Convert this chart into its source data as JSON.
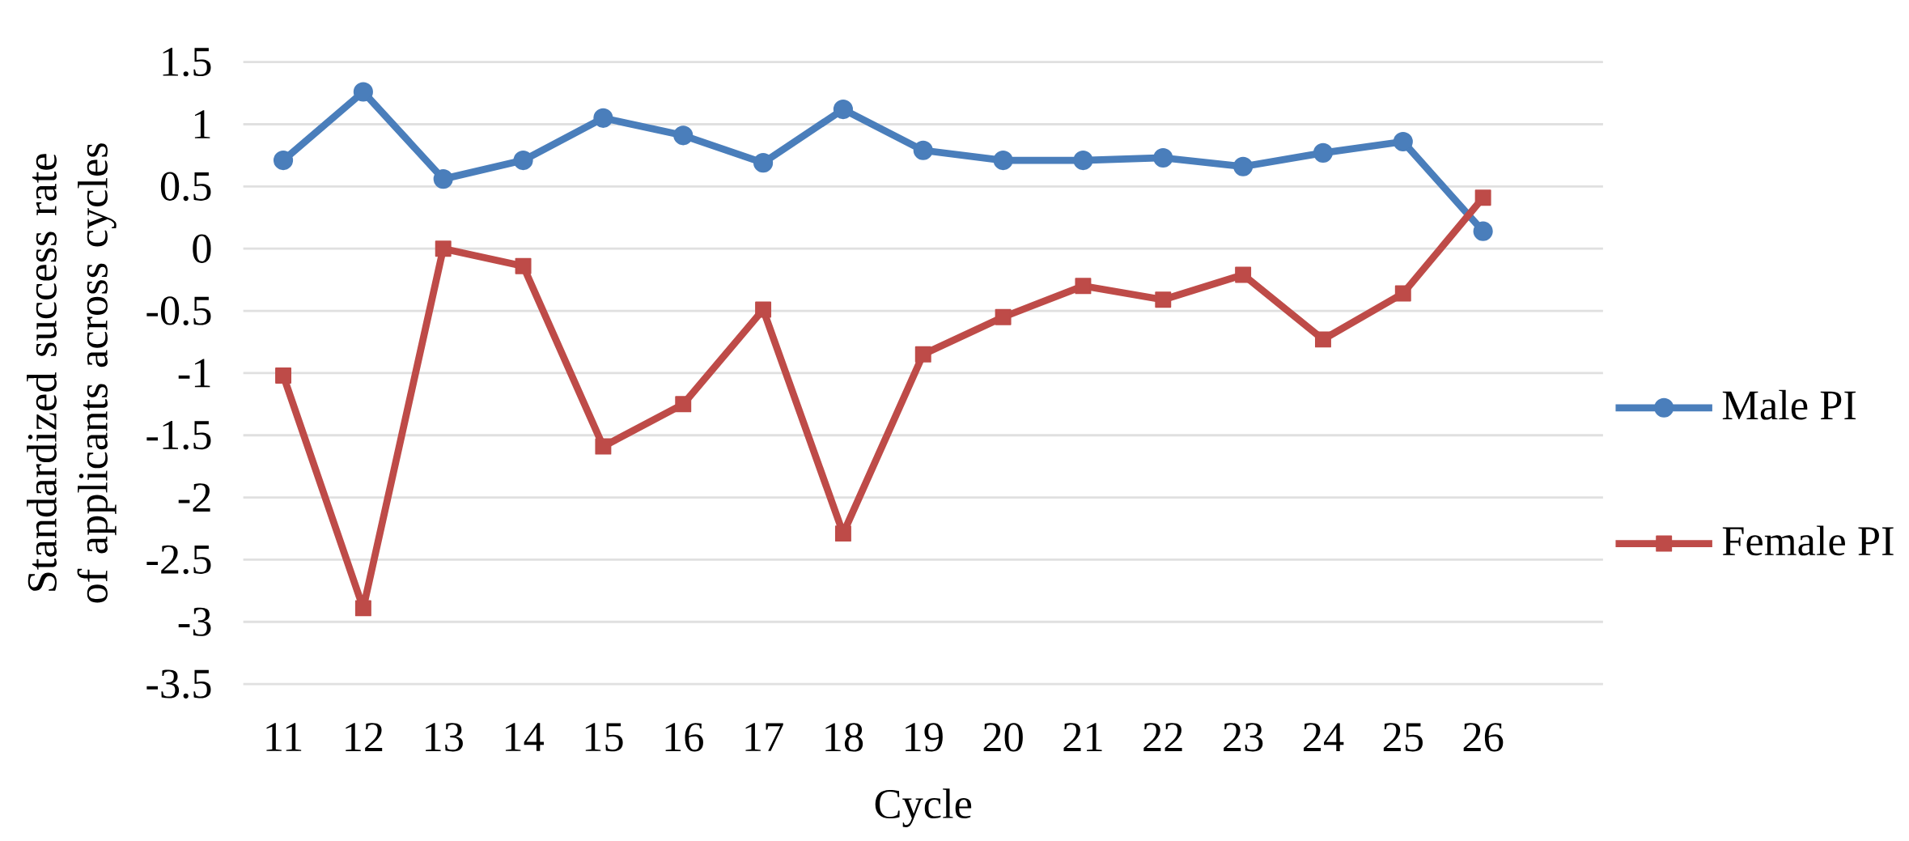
{
  "chart_data": {
    "type": "line",
    "xlabel": "Cycle",
    "ylabel": "Standardized success rate of applicants across cycles",
    "categories": [
      "11",
      "12",
      "13",
      "14",
      "15",
      "16",
      "17",
      "18",
      "19",
      "20",
      "21",
      "22",
      "23",
      "24",
      "25",
      "26"
    ],
    "series": [
      {
        "name": "Male PI",
        "color": "#4a7ebb",
        "marker": "circle",
        "values": [
          0.71,
          1.26,
          0.56,
          0.71,
          1.05,
          0.91,
          0.69,
          1.12,
          0.79,
          0.71,
          0.71,
          0.73,
          0.66,
          0.77,
          0.86,
          0.14
        ]
      },
      {
        "name": "Female PI",
        "color": "#be4b48",
        "marker": "square",
        "values": [
          -1.02,
          -2.89,
          0,
          -0.14,
          -1.59,
          -1.25,
          -0.49,
          -2.29,
          -0.85,
          -0.55,
          -0.3,
          -0.41,
          -0.21,
          -0.73,
          -0.36,
          0.41
        ]
      }
    ],
    "ylim": [
      -3.5,
      1.5
    ],
    "yticks": [
      -3.5,
      -3,
      -2.5,
      -2,
      -1.5,
      -1,
      -0.5,
      0,
      0.5,
      1,
      1.5
    ],
    "grid": "y",
    "legend": "right",
    "line_style": "solid"
  }
}
